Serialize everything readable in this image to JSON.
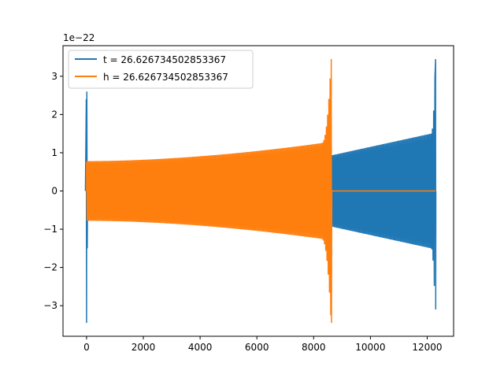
{
  "chart_data": {
    "type": "line",
    "title": "",
    "xlabel": "",
    "ylabel": "",
    "y_offset_label": "1e−22",
    "xlim": [
      -830,
      12930
    ],
    "ylim": [
      -3.8,
      3.8
    ],
    "x_ticks": [
      0,
      2000,
      4000,
      6000,
      8000,
      10000,
      12000
    ],
    "x_tick_labels": [
      "0",
      "2000",
      "4000",
      "6000",
      "8000",
      "10000",
      "12000"
    ],
    "y_ticks": [
      -3,
      -2,
      -1,
      0,
      1,
      2,
      3
    ],
    "y_tick_labels": [
      "−3",
      "−2",
      "−1",
      "0",
      "1",
      "2",
      "3"
    ],
    "grid": false,
    "legend_position": "top-left",
    "series": [
      {
        "name": "t = 26.626734502853367",
        "color": "#1f77b4",
        "description": "chirp oscillation spanning 0 to 12300 with amplitude growing from about 0.8 to 3.45 at merger near 12290, plus a brief high-amplitude spike near 0",
        "key_points": [
          {
            "x": 0,
            "amplitude": 3.45
          },
          {
            "x": 8650,
            "amplitude": 0.93
          },
          {
            "x": 10000,
            "amplitude": 1.08
          },
          {
            "x": 11500,
            "amplitude": 1.4
          },
          {
            "x": 12280,
            "amplitude": 3.45
          },
          {
            "x": 12300,
            "amplitude": 0
          }
        ]
      },
      {
        "name": "h = 26.626734502853367",
        "color": "#ff7f0e",
        "description": "chirp oscillation from 0 to about 8640 with amplitude growing from about 0.78 to 3.45, then flat at 0 until 12300",
        "key_points": [
          {
            "x": 0,
            "amplitude": 0.78
          },
          {
            "x": 4000,
            "amplitude": 0.9
          },
          {
            "x": 7000,
            "amplitude": 1.15
          },
          {
            "x": 8620,
            "amplitude": 3.45
          },
          {
            "x": 8650,
            "amplitude": 0
          },
          {
            "x": 12300,
            "amplitude": 0
          }
        ]
      }
    ]
  }
}
